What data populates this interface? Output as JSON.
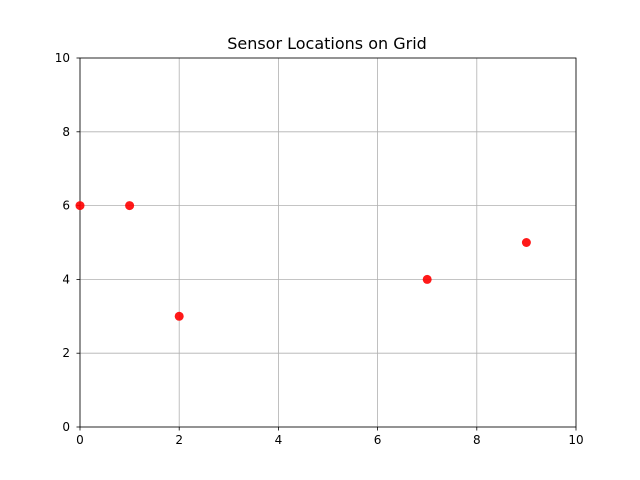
{
  "chart_data": {
    "type": "scatter",
    "title": "Sensor Locations on Grid",
    "xlabel": "",
    "ylabel": "",
    "xlim": [
      0,
      10
    ],
    "ylim": [
      0,
      10
    ],
    "xticks": [
      0,
      2,
      4,
      6,
      8,
      10
    ],
    "yticks": [
      0,
      2,
      4,
      6,
      8,
      10
    ],
    "grid": true,
    "series": [
      {
        "color": "#ff0000",
        "points": [
          {
            "x": 0,
            "y": 6
          },
          {
            "x": 1,
            "y": 6
          },
          {
            "x": 2,
            "y": 3
          },
          {
            "x": 7,
            "y": 4
          },
          {
            "x": 9,
            "y": 5
          }
        ]
      }
    ]
  }
}
